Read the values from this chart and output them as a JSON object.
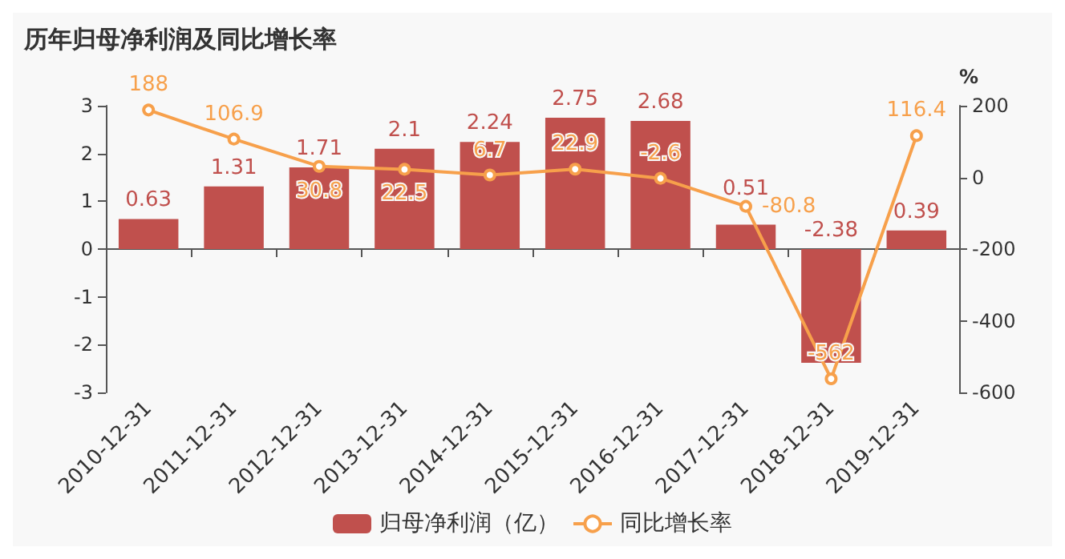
{
  "chart_data": {
    "type": "bar",
    "title": "历年归母净利润及同比增长率",
    "y2label": "%",
    "categories": [
      "2010-12-31",
      "2011-12-31",
      "2012-12-31",
      "2013-12-31",
      "2014-12-31",
      "2015-12-31",
      "2016-12-31",
      "2017-12-31",
      "2018-12-31",
      "2019-12-31"
    ],
    "series": [
      {
        "name": "归母净利润（亿）",
        "color": "#c0504d",
        "values": [
          0.63,
          1.31,
          1.71,
          2.1,
          2.24,
          2.75,
          2.68,
          0.51,
          -2.38,
          0.39
        ]
      },
      {
        "name": "同比增长率",
        "type": "line",
        "axis": "y2",
        "color": "#f7a04b",
        "values": [
          188,
          106.9,
          30.8,
          22.5,
          6.7,
          22.9,
          -2.6,
          -80.8,
          -562,
          116.4
        ]
      }
    ],
    "ylim": [
      -3,
      3
    ],
    "yticks": [
      -3,
      -2,
      -1,
      0,
      1,
      2,
      3
    ],
    "y2lim": [
      -600,
      200
    ],
    "y2ticks": [
      -600,
      -400,
      -200,
      0,
      200
    ],
    "data_labels": true,
    "legend": "bottom",
    "marker": "circle",
    "line_style": "solid"
  }
}
